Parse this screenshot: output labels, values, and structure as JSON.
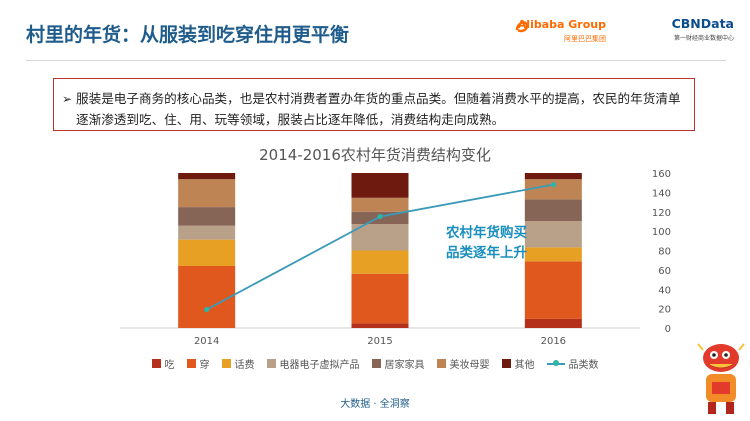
{
  "page": {
    "title": "村里的年货：从服装到吃穿住用更平衡",
    "note": "服装是电子商务的核心品类，也是农村消费者置办年货的重点品类。但随着消费水平的提高，农民的年货清单逐渐渗透到吃、住、用、玩等领域，服装占比逐年降低，消费结构走向成熟。",
    "callout": "农村年货购买品类逐年上升",
    "footer": "大数据 · 全洞察",
    "bullet_icon": "arrow-bullet-icon",
    "logos": {
      "alibaba": "Alibaba Group",
      "alibaba_sub": "阿里巴巴集团",
      "cbndata": "CBNData",
      "cbndata_sub": "第一财经商业数据中心"
    }
  },
  "chart_data": {
    "type": "bar",
    "title": "2014-2016农村年货消费结构变化",
    "categories": [
      "2014",
      "2015",
      "2016"
    ],
    "stacked": true,
    "normalized_100_percent": true,
    "series": [
      {
        "name": "吃",
        "color": "#b5301b",
        "values": [
          0,
          3,
          6
        ]
      },
      {
        "name": "穿",
        "color": "#e0581e",
        "values": [
          40,
          32,
          37
        ]
      },
      {
        "name": "话费",
        "color": "#e8a024",
        "values": [
          17,
          15,
          9
        ]
      },
      {
        "name": "电器电子虚拟产品",
        "color": "#b9a088",
        "values": [
          9,
          17,
          17
        ]
      },
      {
        "name": "居家家具",
        "color": "#866456",
        "values": [
          12,
          8,
          14
        ]
      },
      {
        "name": "美妆母婴",
        "color": "#bf8454",
        "values": [
          18,
          9,
          13
        ]
      },
      {
        "name": "其他",
        "color": "#6e1a0e",
        "values": [
          4,
          16,
          4
        ]
      }
    ],
    "line": {
      "name": "品类数",
      "color": "#3a9ab8",
      "marker_color": "#2bb6a8",
      "values": [
        19,
        115,
        148
      ]
    },
    "y2_axis": {
      "min": 0,
      "max": 160,
      "ticks": [
        0,
        20,
        40,
        60,
        80,
        100,
        120,
        140,
        160
      ]
    },
    "legend_position": "bottom",
    "grid": false
  }
}
